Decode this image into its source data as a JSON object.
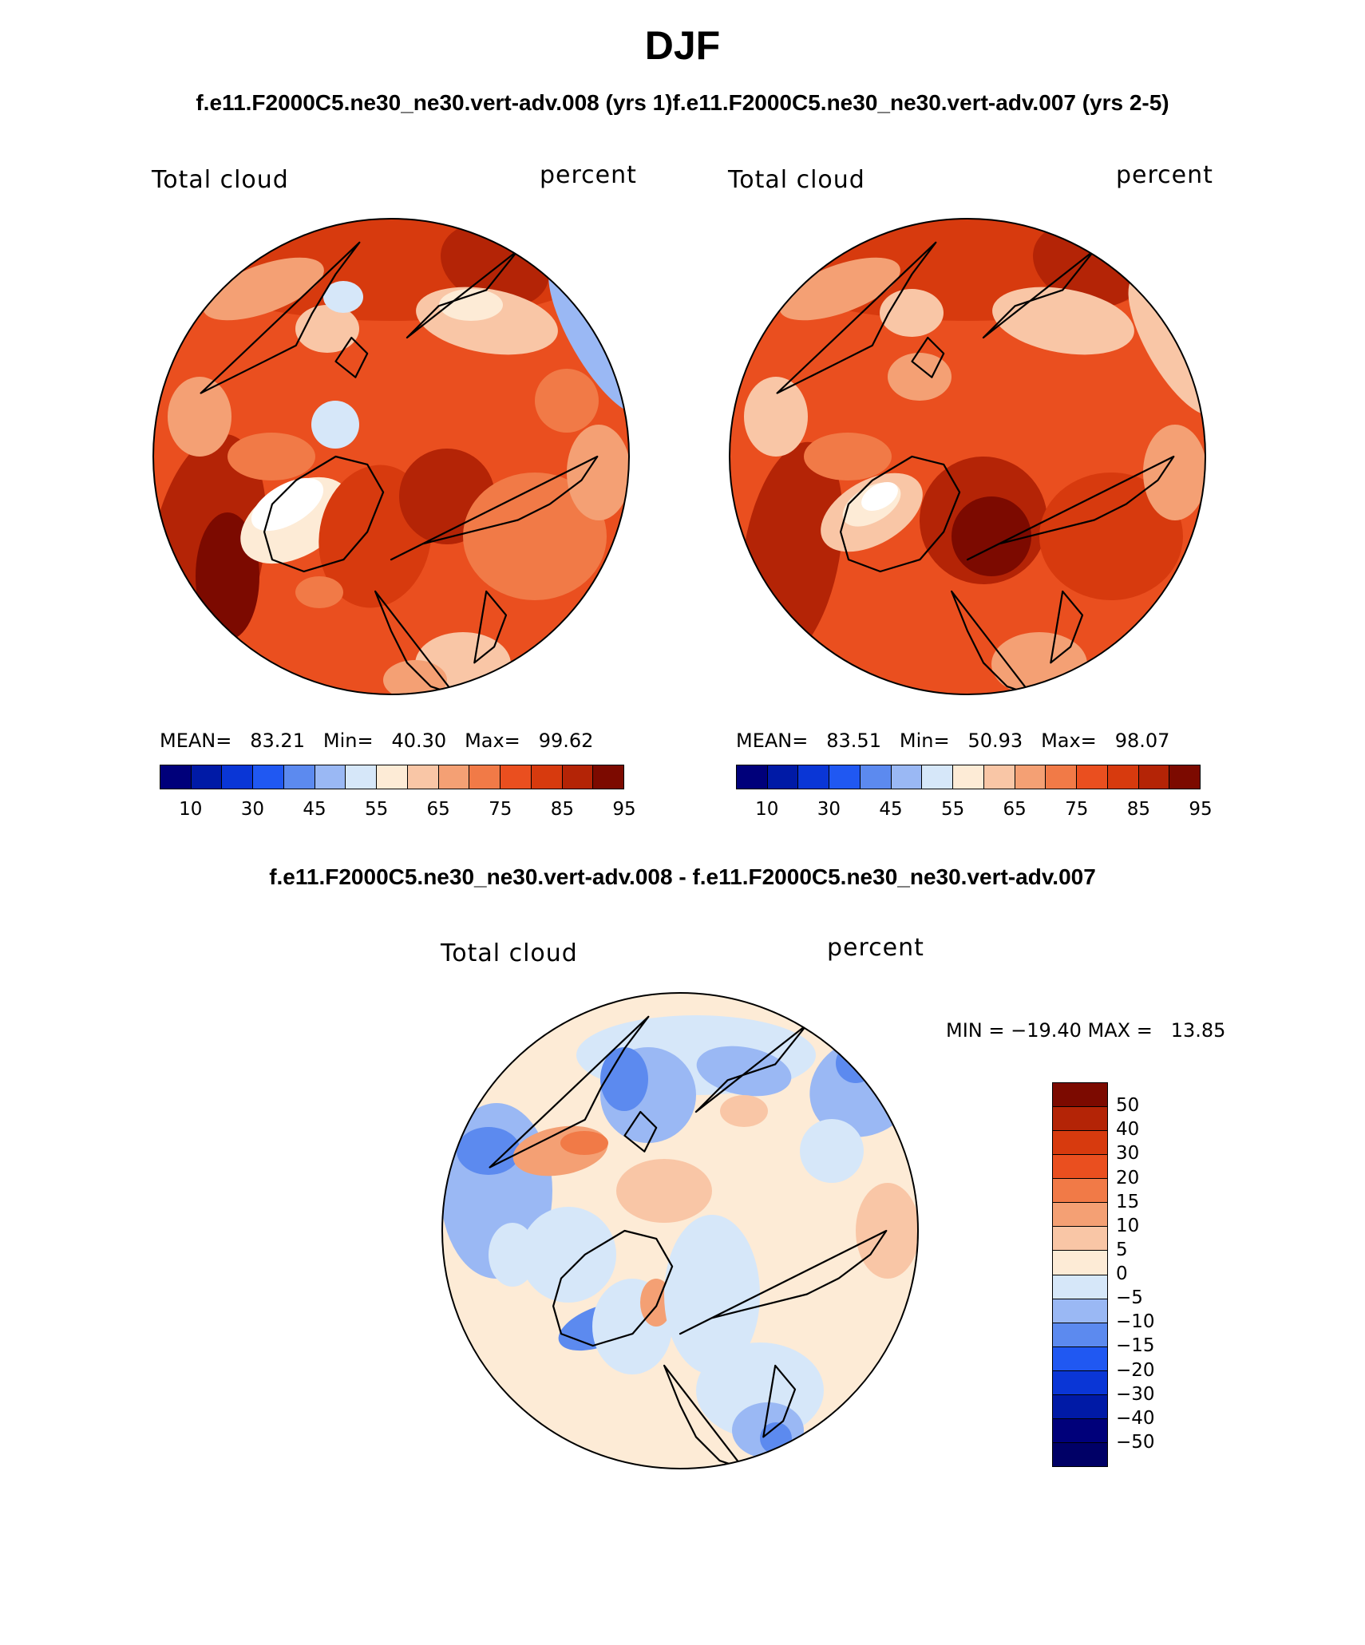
{
  "title": "DJF",
  "subtitle_top": "f.e11.F2000C5.ne30_ne30.vert-adv.008 (yrs 1)f.e11.F2000C5.ne30_ne30.vert-adv.007 (yrs 2-5)",
  "subtitle_diff": "f.e11.F2000C5.ne30_ne30.vert-adv.008 - f.e11.F2000C5.ne30_ne30.vert-adv.007",
  "chart_data": [
    {
      "type": "heatmap",
      "projection": "north polar stereographic",
      "variable": "Total cloud",
      "units": "percent",
      "stats": {
        "mean_label": "MEAN=",
        "mean": "83.21",
        "min_label": "Min=",
        "min": "40.30",
        "max_label": "Max=",
        "max": "99.62"
      },
      "colorbar_ticks": [
        "10",
        "30",
        "45",
        "55",
        "65",
        "75",
        "85",
        "95"
      ],
      "colorbar_colors": [
        "#00007a",
        "#001aa6",
        "#0a36d6",
        "#2058f2",
        "#5c8aef",
        "#9ab8f4",
        "#d6e7f9",
        "#fdebd6",
        "#f9c6a6",
        "#f4a074",
        "#f17a47",
        "#ea4f1f",
        "#d73a0e",
        "#b42406",
        "#7c0a00"
      ]
    },
    {
      "type": "heatmap",
      "projection": "north polar stereographic",
      "variable": "Total cloud",
      "units": "percent",
      "stats": {
        "mean_label": "MEAN=",
        "mean": "83.51",
        "min_label": "Min=",
        "min": "50.93",
        "max_label": "Max=",
        "max": "98.07"
      },
      "colorbar_ticks": [
        "10",
        "30",
        "45",
        "55",
        "65",
        "75",
        "85",
        "95"
      ],
      "colorbar_colors": [
        "#00007a",
        "#001aa6",
        "#0a36d6",
        "#2058f2",
        "#5c8aef",
        "#9ab8f4",
        "#d6e7f9",
        "#fdebd6",
        "#f9c6a6",
        "#f4a074",
        "#f17a47",
        "#ea4f1f",
        "#d73a0e",
        "#b42406",
        "#7c0a00"
      ]
    },
    {
      "type": "heatmap",
      "projection": "north polar stereographic",
      "variable": "Total cloud",
      "units": "percent",
      "difference": true,
      "stats_text": "MIN = −19.40 MAX =   13.85",
      "colorbar_ticks": [
        "50",
        "40",
        "30",
        "20",
        "15",
        "10",
        "5",
        "0",
        "−5",
        "−10",
        "−15",
        "−20",
        "−30",
        "−40",
        "−50"
      ],
      "colorbar_colors": [
        "#7c0a00",
        "#b42406",
        "#d73a0e",
        "#ea4f1f",
        "#f17a47",
        "#f4a074",
        "#f9c6a6",
        "#fdebd6",
        "#d6e7f9",
        "#9ab8f4",
        "#5c8aef",
        "#2058f2",
        "#0a36d6",
        "#001aa6",
        "#00007a",
        "#000066"
      ]
    }
  ]
}
